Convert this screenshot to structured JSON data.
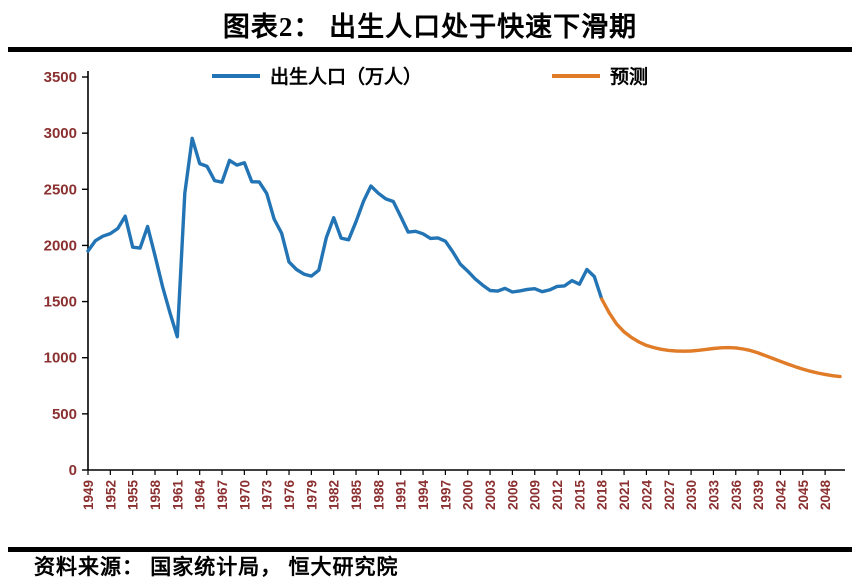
{
  "title": "图表2： 出生人口处于快速下滑期",
  "source": "资料来源： 国家统计局， 恒大研究院",
  "chart_data": {
    "type": "line",
    "title": "图表2： 出生人口处于快速下滑期",
    "xlabel": "",
    "ylabel": "",
    "xlim": [
      1949,
      2050
    ],
    "ylim": [
      0,
      3500
    ],
    "grid": false,
    "legend_position": "top-center",
    "axis_label_color": "#8b3030",
    "axis_line_color": "#000000",
    "y_ticks": [
      0,
      500,
      1000,
      1500,
      2000,
      2500,
      3000,
      3500
    ],
    "x_ticks": [
      1949,
      1952,
      1955,
      1958,
      1961,
      1964,
      1967,
      1970,
      1973,
      1976,
      1979,
      1982,
      1985,
      1988,
      1991,
      1994,
      1997,
      2000,
      2003,
      2006,
      2009,
      2012,
      2015,
      2018,
      2021,
      2024,
      2027,
      2030,
      2033,
      2036,
      2039,
      2042,
      2045,
      2048
    ],
    "series": [
      {
        "name": "出生人口（万人）",
        "color": "#2274b5",
        "x": [
          1949,
          1950,
          1951,
          1952,
          1953,
          1954,
          1955,
          1956,
          1957,
          1958,
          1959,
          1960,
          1961,
          1962,
          1963,
          1964,
          1965,
          1966,
          1967,
          1968,
          1969,
          1970,
          1971,
          1972,
          1973,
          1974,
          1975,
          1976,
          1977,
          1978,
          1979,
          1980,
          1981,
          1982,
          1983,
          1984,
          1985,
          1986,
          1987,
          1988,
          1989,
          1990,
          1991,
          1992,
          1993,
          1994,
          1995,
          1996,
          1997,
          1998,
          1999,
          2000,
          2001,
          2002,
          2003,
          2004,
          2005,
          2006,
          2007,
          2008,
          2009,
          2010,
          2011,
          2012,
          2013,
          2014,
          2015,
          2016,
          2017,
          2018
        ],
        "values": [
          1950,
          2042,
          2082,
          2105,
          2151,
          2260,
          1984,
          1976,
          2169,
          1909,
          1635,
          1402,
          1187,
          2464,
          2954,
          2729,
          2704,
          2577,
          2563,
          2757,
          2715,
          2736,
          2567,
          2566,
          2463,
          2235,
          2109,
          1853,
          1786,
          1745,
          1727,
          1779,
          2069,
          2247,
          2065,
          2050,
          2211,
          2393,
          2529,
          2464,
          2414,
          2391,
          2258,
          2119,
          2126,
          2104,
          2063,
          2067,
          2038,
          1942,
          1834,
          1771,
          1702,
          1647,
          1599,
          1593,
          1617,
          1585,
          1595,
          1608,
          1615,
          1588,
          1604,
          1635,
          1640,
          1687,
          1655,
          1786,
          1723,
          1523
        ]
      },
      {
        "name": "预测",
        "color": "#e07b28",
        "x": [
          2018,
          2019,
          2020,
          2021,
          2022,
          2023,
          2024,
          2025,
          2026,
          2027,
          2028,
          2029,
          2030,
          2031,
          2032,
          2033,
          2034,
          2035,
          2036,
          2037,
          2038,
          2039,
          2040,
          2041,
          2042,
          2043,
          2044,
          2045,
          2046,
          2047,
          2048,
          2049,
          2050
        ],
        "values": [
          1523,
          1400,
          1300,
          1230,
          1180,
          1140,
          1110,
          1090,
          1075,
          1065,
          1060,
          1058,
          1060,
          1066,
          1074,
          1082,
          1088,
          1090,
          1087,
          1078,
          1063,
          1043,
          1018,
          993,
          968,
          943,
          920,
          899,
          880,
          864,
          851,
          840,
          832
        ]
      }
    ]
  }
}
